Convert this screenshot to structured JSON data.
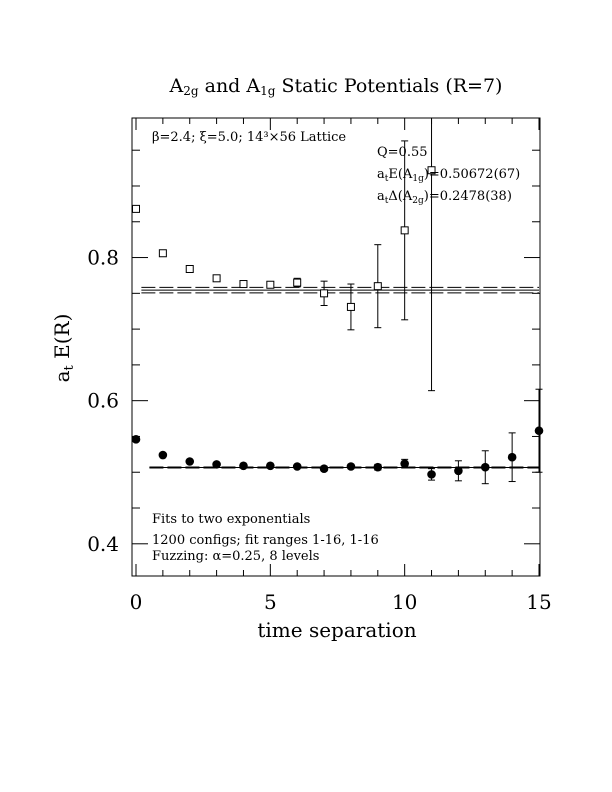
{
  "chart_data": {
    "type": "scatter",
    "title": {
      "prefix": "A",
      "sub1": "2g",
      "middle": " and A",
      "sub2": "1g",
      "suffix": " Static Potentials (R=7)"
    },
    "xlabel": "time separation",
    "ylabel": {
      "main": "a",
      "sub": "t",
      "rest": " E(R)"
    },
    "xlim": [
      0,
      15
    ],
    "ylim": [
      0.355,
      0.995
    ],
    "x_ticks": [
      0,
      5,
      10,
      15
    ],
    "x_tick_labels": [
      "0",
      "5",
      "10",
      "15"
    ],
    "y_ticks": [
      0.4,
      0.6,
      0.8
    ],
    "y_tick_labels": [
      "0.4",
      "0.6",
      "0.8"
    ],
    "grid": false,
    "legend": "none",
    "info_top_left": "β=2.4; ξ=5.0; 14³×56 Lattice",
    "stats": {
      "q": "Q=0.55",
      "e_prefix": "a",
      "e_sub": "t",
      "e_mid": "E(A",
      "e_sub2": "1g",
      "e_rest": ")=0.50672(67)",
      "d_prefix": "a",
      "d_sub": "t",
      "d_mid": "Δ(A",
      "d_sub2": "2g",
      "d_rest": ")=0.2478(38)"
    },
    "notes_bottom": [
      "Fits to two exponentials",
      "1200 configs; fit ranges 1-16, 1-16",
      "Fuzzing: α=0.25, 8 levels"
    ],
    "series": [
      {
        "marker": "open-square",
        "points": [
          {
            "x": 0,
            "y": 0.868,
            "err": 0.002
          },
          {
            "x": 1,
            "y": 0.806,
            "err": 0.002
          },
          {
            "x": 2,
            "y": 0.784,
            "err": 0.002
          },
          {
            "x": 3,
            "y": 0.771,
            "err": 0.003
          },
          {
            "x": 4,
            "y": 0.763,
            "err": 0.004
          },
          {
            "x": 5,
            "y": 0.762,
            "err": 0.004
          },
          {
            "x": 6,
            "y": 0.765,
            "err": 0.006
          },
          {
            "x": 7,
            "y": 0.75,
            "err": 0.017
          },
          {
            "x": 8,
            "y": 0.731,
            "err": 0.032
          },
          {
            "x": 9,
            "y": 0.76,
            "err": 0.058
          },
          {
            "x": 10,
            "y": 0.838,
            "err": 0.125
          },
          {
            "x": 11,
            "y": 0.922,
            "err": 0.308
          }
        ],
        "fit_line": {
          "x_start": 0.2,
          "x_end": 15,
          "y": 0.7545,
          "band": 0.0038
        }
      },
      {
        "marker": "filled-circle",
        "points": [
          {
            "x": 0,
            "y": 0.546,
            "err": 0.003
          },
          {
            "x": 1,
            "y": 0.524,
            "err": 0.002
          },
          {
            "x": 2,
            "y": 0.515,
            "err": 0.002
          },
          {
            "x": 3,
            "y": 0.511,
            "err": 0.002
          },
          {
            "x": 4,
            "y": 0.509,
            "err": 0.002
          },
          {
            "x": 5,
            "y": 0.509,
            "err": 0.002
          },
          {
            "x": 6,
            "y": 0.508,
            "err": 0.002
          },
          {
            "x": 7,
            "y": 0.505,
            "err": 0.003
          },
          {
            "x": 8,
            "y": 0.508,
            "err": 0.003
          },
          {
            "x": 9,
            "y": 0.507,
            "err": 0.004
          },
          {
            "x": 10,
            "y": 0.512,
            "err": 0.006
          },
          {
            "x": 11,
            "y": 0.497,
            "err": 0.008
          },
          {
            "x": 12,
            "y": 0.502,
            "err": 0.014
          },
          {
            "x": 13,
            "y": 0.507,
            "err": 0.023
          },
          {
            "x": 14,
            "y": 0.521,
            "err": 0.034
          },
          {
            "x": 15,
            "y": 0.558,
            "err": 0.058
          }
        ],
        "fit_line": {
          "x_start": 0.5,
          "x_end": 15,
          "y": 0.5067,
          "band": 0.0007
        }
      }
    ]
  }
}
